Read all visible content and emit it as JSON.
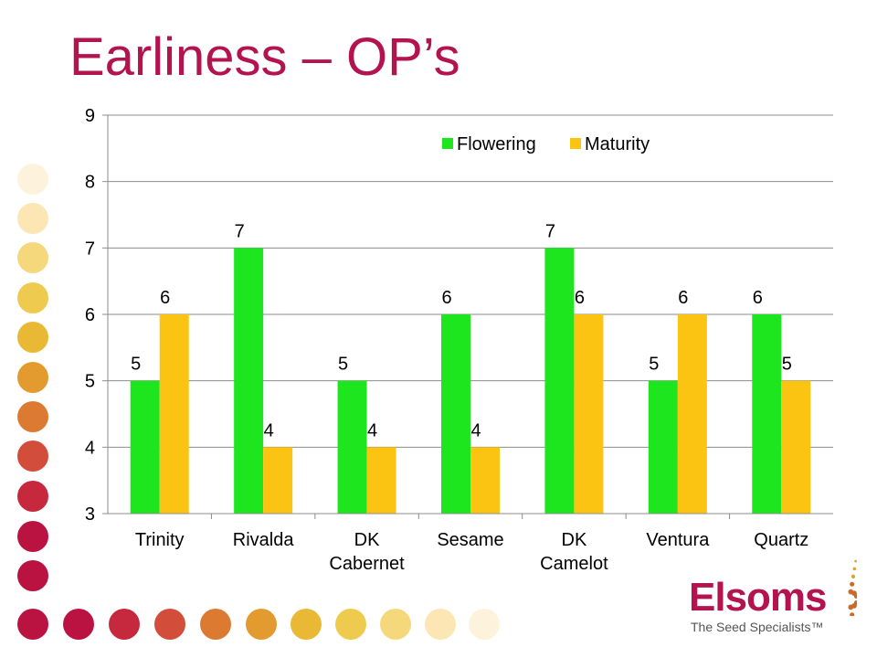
{
  "slide": {
    "title": "Earliness – OP’s"
  },
  "chart_data": {
    "type": "bar",
    "categories": [
      [
        "Trinity"
      ],
      [
        "Rivalda"
      ],
      [
        "DK",
        "Cabernet"
      ],
      [
        "Sesame"
      ],
      [
        "DK",
        "Camelot"
      ],
      [
        "Ventura"
      ],
      [
        "Quartz"
      ]
    ],
    "series": [
      {
        "name": "Flowering",
        "values": [
          5,
          7,
          5,
          6,
          7,
          5,
          6
        ],
        "color": "#1ee61e"
      },
      {
        "name": "Maturity",
        "values": [
          6,
          4,
          4,
          4,
          6,
          6,
          5
        ],
        "color": "#fcc412"
      }
    ],
    "ylim": [
      3,
      9
    ],
    "yticks": [
      3,
      4,
      5,
      6,
      7,
      8,
      9
    ],
    "grid": true,
    "legend": "top-right",
    "data_labels": true
  },
  "logo": {
    "name": "Elsoms",
    "tagline": "The Seed Specialists™",
    "color": "#b3134f"
  },
  "decoration": {
    "dot_colors": [
      "#fdf3dc",
      "#fbe6b4",
      "#f6d87c",
      "#eecb4e",
      "#e9b834",
      "#e39a2e",
      "#dc7a32",
      "#d24d3a",
      "#c6293e",
      "#ba1342"
    ]
  }
}
